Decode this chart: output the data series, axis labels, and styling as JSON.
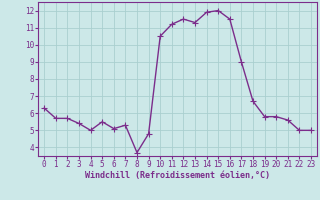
{
  "x": [
    0,
    1,
    2,
    3,
    4,
    5,
    6,
    7,
    8,
    9,
    10,
    11,
    12,
    13,
    14,
    15,
    16,
    17,
    18,
    19,
    20,
    21,
    22,
    23
  ],
  "y": [
    6.3,
    5.7,
    5.7,
    5.4,
    5.0,
    5.5,
    5.1,
    5.3,
    3.7,
    4.8,
    10.5,
    11.2,
    11.5,
    11.3,
    11.9,
    12.0,
    11.5,
    9.0,
    6.7,
    5.8,
    5.8,
    5.6,
    5.0,
    5.0
  ],
  "line_color": "#7b2d8b",
  "marker": "+",
  "marker_size": 4,
  "bg_color": "#cce8e8",
  "grid_color": "#aacfcf",
  "xlabel": "Windchill (Refroidissement éolien,°C)",
  "xlabel_color": "#7b2d8b",
  "tick_color": "#7b2d8b",
  "ylim": [
    3.5,
    12.5
  ],
  "yticks": [
    4,
    5,
    6,
    7,
    8,
    9,
    10,
    11,
    12
  ],
  "xlim": [
    -0.5,
    23.5
  ],
  "xticks": [
    0,
    1,
    2,
    3,
    4,
    5,
    6,
    7,
    8,
    9,
    10,
    11,
    12,
    13,
    14,
    15,
    16,
    17,
    18,
    19,
    20,
    21,
    22,
    23
  ],
  "spine_color": "#7b2d8b",
  "line_width": 1.0,
  "tick_fontsize": 5.5,
  "xlabel_fontsize": 6.0
}
